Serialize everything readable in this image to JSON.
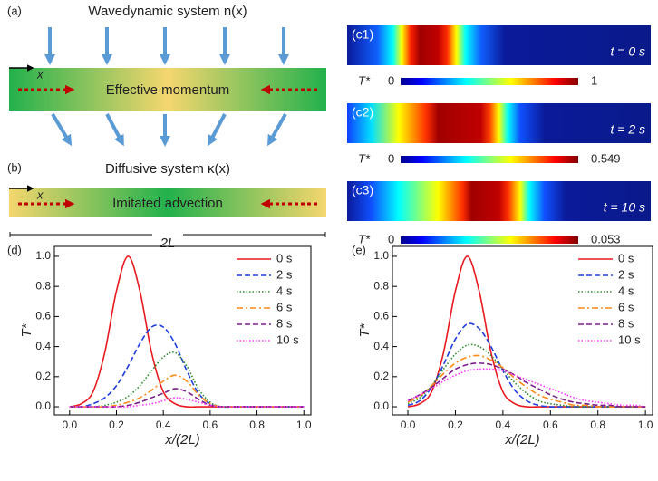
{
  "panel_a": {
    "label": "(a)",
    "title": "Wavedynamic system n(x)",
    "axis": "x",
    "text": "Effective momentum"
  },
  "panel_b": {
    "label": "(b)",
    "title": "Diffusive system κ(x)",
    "axis": "x",
    "text": "Imitated advection",
    "length": "2L"
  },
  "panel_c": {
    "rows": [
      {
        "label": "(c1)",
        "time": "t = 0 s",
        "colorbar": {
          "label": "T*",
          "min": "0",
          "max": "1"
        }
      },
      {
        "label": "(c2)",
        "time": "t = 2 s",
        "colorbar": {
          "label": "T*",
          "min": "0",
          "max": "0.549"
        }
      },
      {
        "label": "(c3)",
        "time": "t = 10 s",
        "colorbar": {
          "label": "T*",
          "min": "0",
          "max": "0.053"
        }
      }
    ]
  },
  "chart_data": [
    {
      "type": "line",
      "label": "(d)",
      "xlabel": "x/(2L)",
      "ylabel": "T*",
      "legend": "upper right",
      "x": [
        0,
        0.05,
        0.1,
        0.15,
        0.2,
        0.25,
        0.3,
        0.35,
        0.4,
        0.45,
        0.5,
        0.55,
        0.6,
        0.65,
        0.7,
        0.75,
        0.8,
        0.85,
        0.9,
        0.95,
        1.0
      ],
      "xlim": [
        -0.065,
        1.03
      ],
      "ylim": [
        -0.054,
        1.066
      ],
      "xticks": [
        {
          "value": 0,
          "label": "0.0"
        },
        {
          "value": 0.2,
          "label": "0.2"
        },
        {
          "value": 0.4,
          "label": "0.4"
        },
        {
          "value": 0.6,
          "label": "0.6"
        },
        {
          "value": 0.8,
          "label": "0.8"
        },
        {
          "value": 1,
          "label": "1.0"
        }
      ],
      "yticks": [
        {
          "value": 0,
          "label": "0.0"
        },
        {
          "value": 0.2,
          "label": "0.2"
        },
        {
          "value": 0.4,
          "label": "0.4"
        },
        {
          "value": 0.6,
          "label": "0.6"
        },
        {
          "value": 0.8,
          "label": "0.8"
        },
        {
          "value": 1,
          "label": "1.0"
        }
      ],
      "series": [
        {
          "name": "0 s",
          "color": "#e8191f",
          "linestyle": "solid",
          "values": [
            0,
            0.02,
            0.1,
            0.36,
            0.77,
            1,
            0.77,
            0.36,
            0.1,
            0.02,
            0,
            0,
            0,
            0,
            0,
            0,
            0,
            0,
            0,
            0,
            0
          ]
        },
        {
          "name": "2 s",
          "color": "#1f3fe0",
          "linestyle": "dashed",
          "values": [
            0,
            0,
            0.02,
            0.06,
            0.14,
            0.27,
            0.42,
            0.53,
            0.53,
            0.42,
            0.24,
            0.09,
            0.02,
            0,
            0,
            0,
            0,
            0,
            0,
            0,
            0
          ]
        },
        {
          "name": "4 s",
          "color": "#2e8b2e",
          "linestyle": "dotted",
          "values": [
            0,
            0,
            0,
            0.01,
            0.03,
            0.07,
            0.14,
            0.24,
            0.33,
            0.36,
            0.27,
            0.12,
            0.03,
            0,
            0,
            0,
            0,
            0,
            0,
            0,
            0
          ]
        },
        {
          "name": "6 s",
          "color": "#ff8c1a",
          "linestyle": "dashdot",
          "values": [
            0,
            0,
            0,
            0,
            0.01,
            0.03,
            0.06,
            0.11,
            0.17,
            0.21,
            0.17,
            0.08,
            0.02,
            0,
            0,
            0,
            0,
            0,
            0,
            0,
            0
          ]
        },
        {
          "name": "8 s",
          "color": "#7a1f8a",
          "linestyle": "dashed",
          "values": [
            0,
            0,
            0,
            0,
            0,
            0.01,
            0.03,
            0.06,
            0.09,
            0.12,
            0.1,
            0.05,
            0.01,
            0,
            0,
            0,
            0,
            0,
            0,
            0,
            0
          ]
        },
        {
          "name": "10 s",
          "color": "#ff33ff",
          "linestyle": "dotted",
          "values": [
            0,
            0,
            0,
            0,
            0,
            0,
            0.01,
            0.02,
            0.04,
            0.06,
            0.05,
            0.03,
            0.01,
            0,
            0,
            0,
            0,
            0,
            0,
            0,
            0
          ]
        }
      ]
    },
    {
      "type": "line",
      "label": "(e)",
      "xlabel": "x/(2L)",
      "ylabel": "T*",
      "legend": "upper right",
      "x": [
        0,
        0.05,
        0.1,
        0.15,
        0.2,
        0.25,
        0.3,
        0.35,
        0.4,
        0.45,
        0.5,
        0.55,
        0.6,
        0.65,
        0.7,
        0.75,
        0.8,
        0.85,
        0.9,
        0.95,
        1.0
      ],
      "xlim": [
        -0.065,
        1.03
      ],
      "ylim": [
        -0.054,
        1.066
      ],
      "xticks": [
        {
          "value": 0,
          "label": "0.0"
        },
        {
          "value": 0.2,
          "label": "0.2"
        },
        {
          "value": 0.4,
          "label": "0.4"
        },
        {
          "value": 0.6,
          "label": "0.6"
        },
        {
          "value": 0.8,
          "label": "0.8"
        },
        {
          "value": 1,
          "label": "1.0"
        }
      ],
      "yticks": [
        {
          "value": 0,
          "label": "0.0"
        },
        {
          "value": 0.2,
          "label": "0.2"
        },
        {
          "value": 0.4,
          "label": "0.4"
        },
        {
          "value": 0.6,
          "label": "0.6"
        },
        {
          "value": 0.8,
          "label": "0.8"
        },
        {
          "value": 1,
          "label": "1.0"
        }
      ],
      "series": [
        {
          "name": "0 s",
          "color": "#e8191f",
          "linestyle": "solid",
          "values": [
            0,
            0.02,
            0.1,
            0.36,
            0.77,
            1,
            0.77,
            0.36,
            0.1,
            0.02,
            0,
            0,
            0,
            0,
            0,
            0,
            0,
            0,
            0,
            0,
            0
          ]
        },
        {
          "name": "2 s",
          "color": "#1f3fe0",
          "linestyle": "dashed",
          "values": [
            0.01,
            0.04,
            0.13,
            0.28,
            0.45,
            0.55,
            0.52,
            0.4,
            0.24,
            0.11,
            0.04,
            0.01,
            0,
            0,
            0,
            0,
            0,
            0,
            0,
            0,
            0
          ]
        },
        {
          "name": "4 s",
          "color": "#2e8b2e",
          "linestyle": "dotted",
          "values": [
            0.02,
            0.06,
            0.14,
            0.25,
            0.35,
            0.41,
            0.4,
            0.34,
            0.25,
            0.16,
            0.09,
            0.04,
            0.02,
            0.01,
            0,
            0,
            0,
            0,
            0,
            0,
            0
          ]
        },
        {
          "name": "6 s",
          "color": "#ff8c1a",
          "linestyle": "dashdot",
          "values": [
            0.03,
            0.07,
            0.14,
            0.22,
            0.29,
            0.33,
            0.34,
            0.31,
            0.26,
            0.19,
            0.13,
            0.08,
            0.05,
            0.03,
            0.01,
            0.01,
            0,
            0,
            0,
            0,
            0
          ]
        },
        {
          "name": "8 s",
          "color": "#7a1f8a",
          "linestyle": "dashed",
          "values": [
            0.04,
            0.08,
            0.13,
            0.19,
            0.25,
            0.28,
            0.29,
            0.28,
            0.25,
            0.21,
            0.16,
            0.12,
            0.08,
            0.05,
            0.03,
            0.02,
            0.01,
            0.01,
            0,
            0,
            0
          ]
        },
        {
          "name": "10 s",
          "color": "#ff33ff",
          "linestyle": "dotted",
          "values": [
            0.04,
            0.08,
            0.12,
            0.17,
            0.21,
            0.24,
            0.25,
            0.25,
            0.24,
            0.21,
            0.18,
            0.15,
            0.12,
            0.09,
            0.06,
            0.04,
            0.03,
            0.02,
            0.01,
            0.01,
            0
          ]
        }
      ]
    }
  ]
}
